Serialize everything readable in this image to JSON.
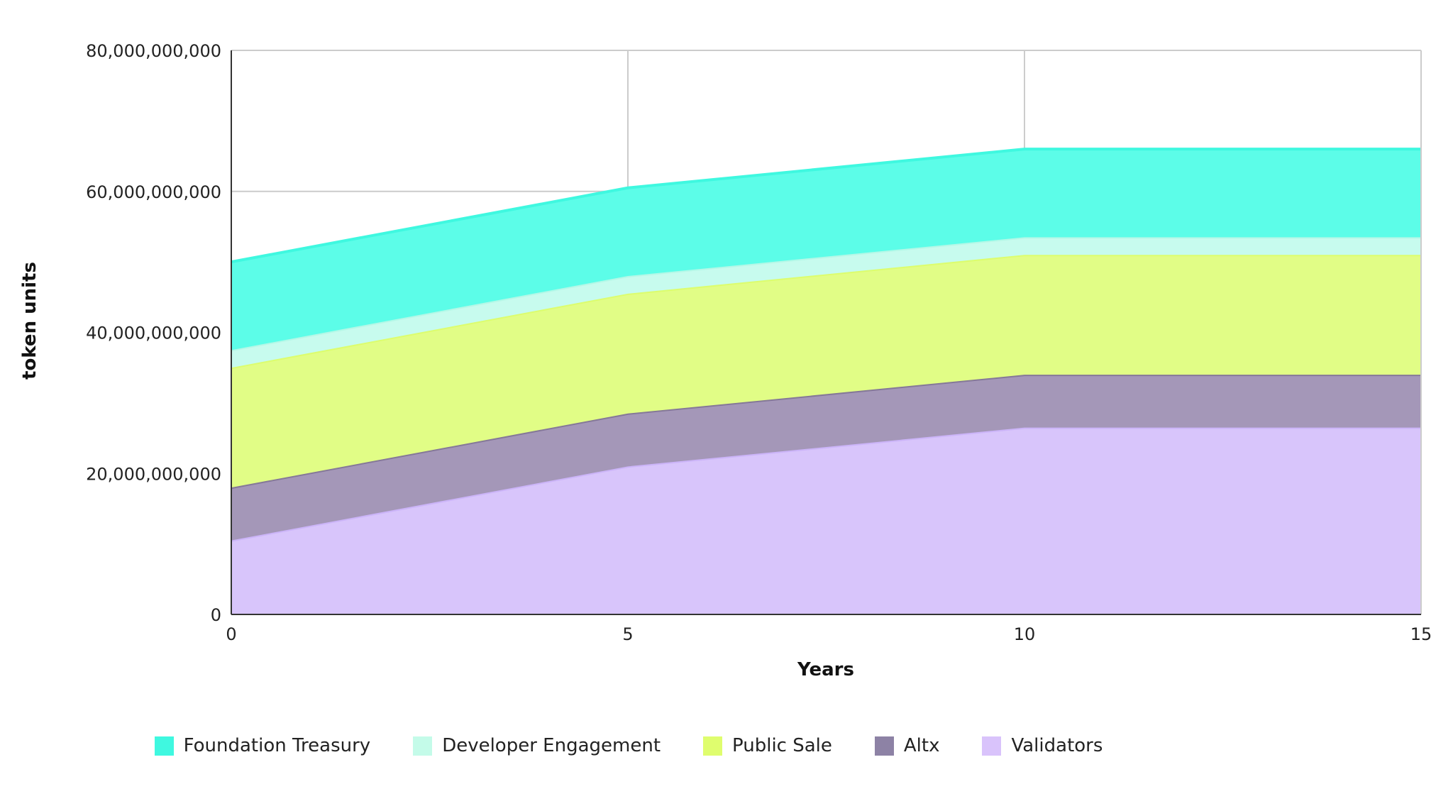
{
  "chart_data": {
    "type": "area",
    "stacked": true,
    "title": "",
    "xlabel": "Years",
    "ylabel": "token units",
    "x": [
      0,
      5,
      10,
      15
    ],
    "xlim": [
      0,
      15
    ],
    "ylim": [
      0,
      80000000000
    ],
    "x_ticks": [
      0,
      5,
      10,
      15
    ],
    "y_ticks": [
      0,
      20000000000,
      40000000000,
      60000000000,
      80000000000
    ],
    "x_tick_labels": [
      "0",
      "5",
      "10",
      "15"
    ],
    "y_tick_labels": [
      "0",
      "20,000,000,000",
      "40,000,000,000",
      "60,000,000,000",
      "80,000,000,000"
    ],
    "grid": true,
    "legend_position": "bottom",
    "series": [
      {
        "name": "Validators",
        "color": "#d8c5fb",
        "line_color": "#cbb4f8",
        "values": [
          10500000000,
          21000000000,
          26500000000,
          26500000000
        ]
      },
      {
        "name": "Altx",
        "color": "#a497b8",
        "line_color": "#857898",
        "values": [
          7500000000,
          7500000000,
          7500000000,
          7500000000
        ]
      },
      {
        "name": "Public Sale",
        "color": "#e1fd86",
        "line_color": "#dcfd6e",
        "values": [
          17000000000,
          17000000000,
          17000000000,
          17000000000
        ]
      },
      {
        "name": "Developer Engagement",
        "color": "#c7fbee",
        "line_color": "#b4f8e7",
        "values": [
          2500000000,
          2500000000,
          2500000000,
          2500000000
        ]
      },
      {
        "name": "Foundation Treasury",
        "color": "#5cfde8",
        "line_color": "#3ff8e0",
        "values": [
          12500000000,
          12500000000,
          12500000000,
          12500000000
        ]
      }
    ],
    "legend": [
      {
        "label": "Foundation Treasury",
        "color": "#3ff8e0"
      },
      {
        "label": "Developer Engagement",
        "color": "#c4fbe9"
      },
      {
        "label": "Public Sale",
        "color": "#dffd6e"
      },
      {
        "label": "Altx",
        "color": "#8d82a5"
      },
      {
        "label": "Validators",
        "color": "#d9c3fb"
      }
    ]
  }
}
